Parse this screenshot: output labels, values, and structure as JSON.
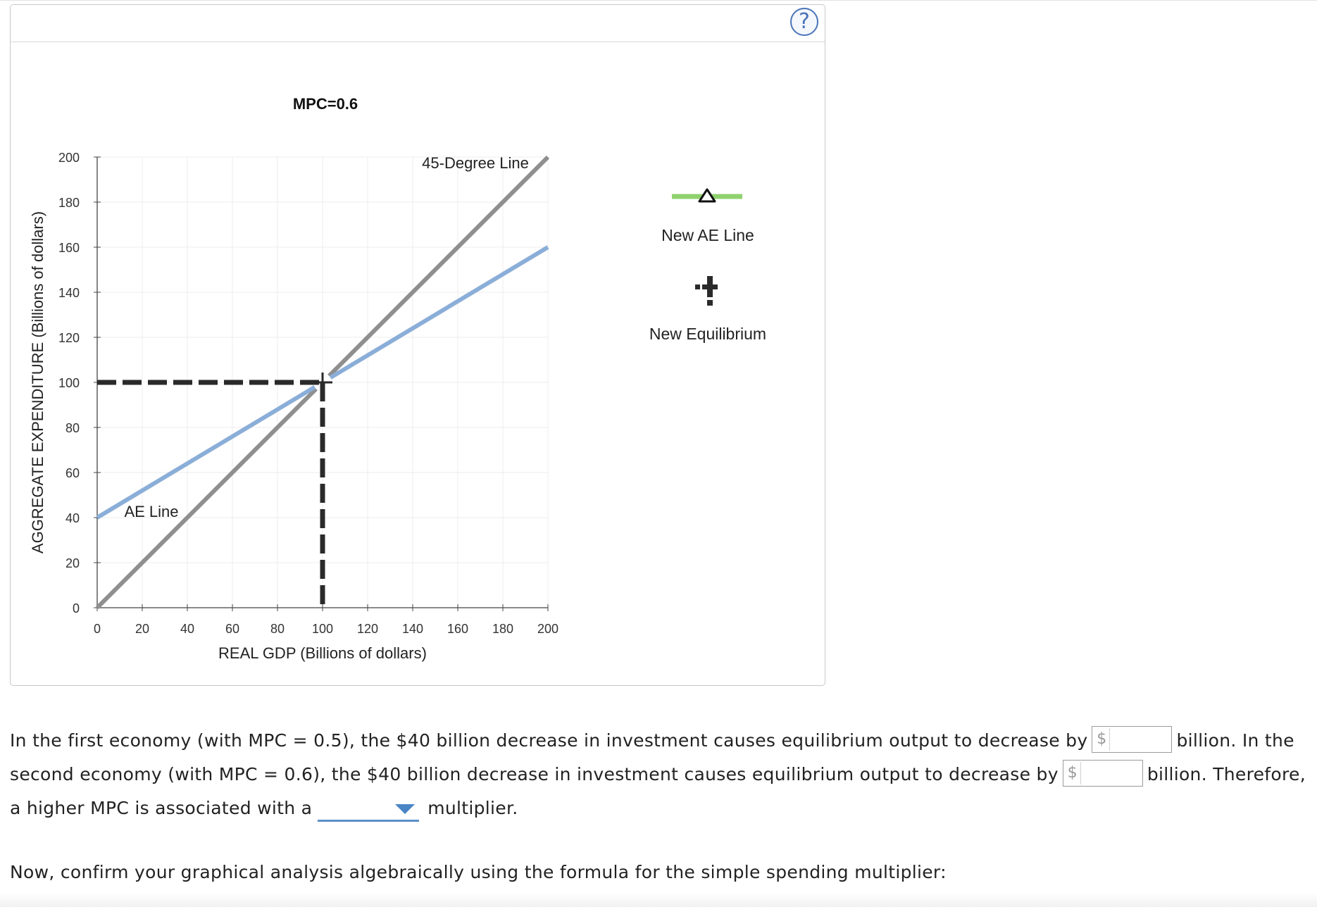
{
  "help": {
    "label": "?"
  },
  "chart_data": {
    "type": "line",
    "title": "MPC=0.6",
    "xlabel": "REAL GDP (Billions of dollars)",
    "ylabel": "AGGREGATE EXPENDITURE (Billions of dollars)",
    "xlim": [
      0,
      200
    ],
    "ylim": [
      0,
      200
    ],
    "xticks": [
      0,
      20,
      40,
      60,
      80,
      100,
      120,
      140,
      160,
      180,
      200
    ],
    "yticks": [
      0,
      20,
      40,
      60,
      80,
      100,
      120,
      140,
      160,
      180,
      200
    ],
    "grid": true,
    "series": [
      {
        "name": "45-Degree Line",
        "color": "#8f8f8f",
        "x": [
          0,
          200
        ],
        "y": [
          0,
          200
        ]
      },
      {
        "name": "AE Line",
        "color": "#8aaed8",
        "x": [
          0,
          200
        ],
        "y": [
          40,
          160
        ]
      }
    ],
    "equilibrium": {
      "x": 100,
      "y": 100
    }
  },
  "legend": {
    "new_ae_line": {
      "label": "New AE Line",
      "color": "#8fd16f",
      "icon": "triangle-line-icon"
    },
    "new_equilibrium": {
      "label": "New Equilibrium",
      "icon": "plus-cross-icon"
    }
  },
  "question": {
    "part1": "In the first economy (with MPC = 0.5), the $40 billion decrease in investment causes equilibrium output to decrease by",
    "part2": "billion. In the second economy (with MPC = 0.6), the $40 billion decrease in investment causes equilibrium output to decrease by",
    "part3": "billion. Therefore, a higher MPC is associated with a",
    "part4": "multiplier.",
    "currency_symbol": "$",
    "answer1": "",
    "answer2": "",
    "dropdown_selected": ""
  },
  "instruction": "Now, confirm your graphical analysis algebraically using the formula for the simple spending multiplier:"
}
